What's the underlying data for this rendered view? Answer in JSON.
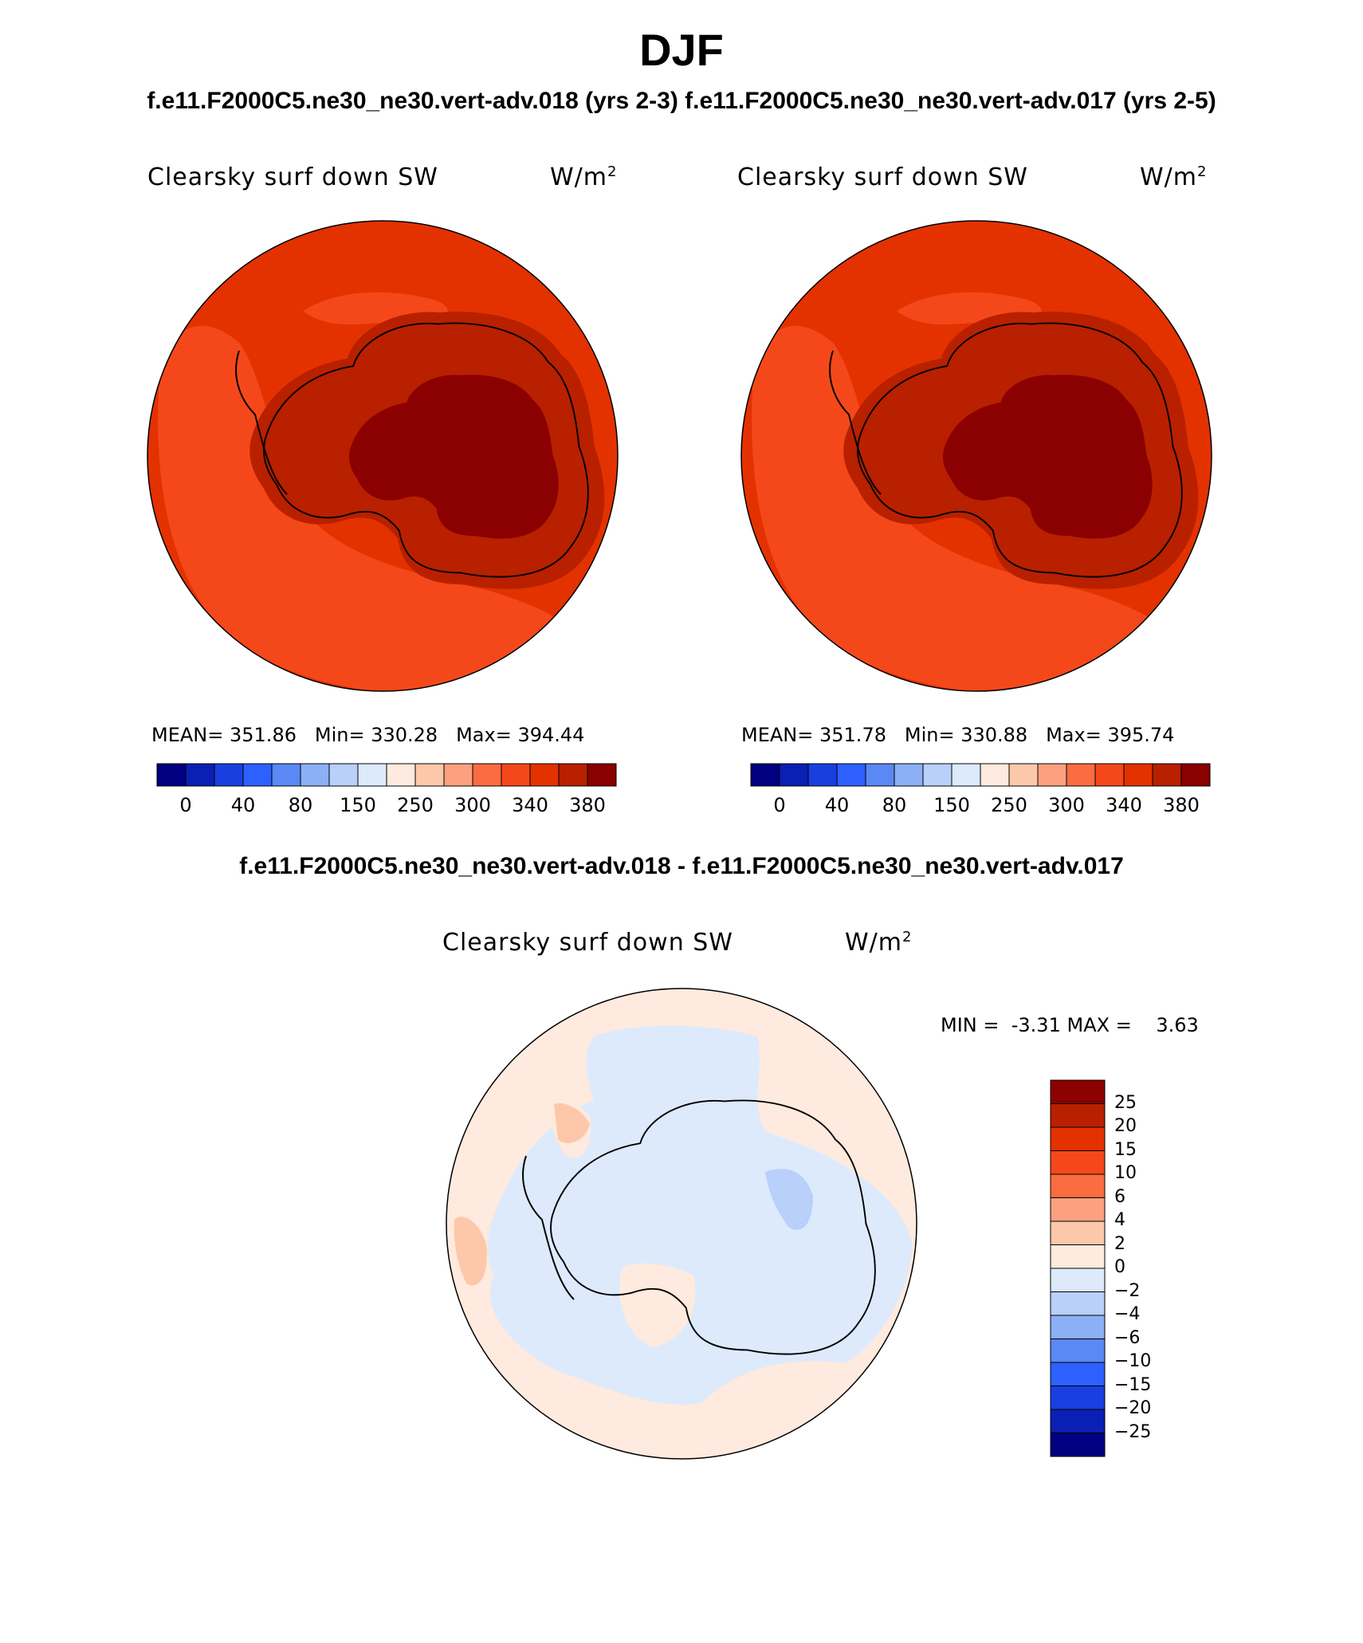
{
  "title": "DJF",
  "subtitle_top": "f.e11.F2000C5.ne30_ne30.vert-adv.018 (yrs 2-3) f.e11.F2000C5.ne30_ne30.vert-adv.017 (yrs 2-5)",
  "subtitle_diff": "f.e11.F2000C5.ne30_ne30.vert-adv.018 - f.e11.F2000C5.ne30_ne30.vert-adv.017",
  "panels": [
    {
      "variable": "Clearsky surf down SW",
      "units": "W/m",
      "units_sup": "2",
      "mean_label": "MEAN=",
      "mean": "351.86",
      "min_label": "Min=",
      "min": "330.28",
      "max_label": "Max=",
      "max": "394.44"
    },
    {
      "variable": "Clearsky surf down SW",
      "units": "W/m",
      "units_sup": "2",
      "mean_label": "MEAN=",
      "mean": "351.78",
      "min_label": "Min=",
      "min": "330.88",
      "max_label": "Max=",
      "max": "395.74"
    }
  ],
  "abs_colorbar": {
    "ticks": [
      "0",
      "40",
      "80",
      "150",
      "250",
      "300",
      "340",
      "380"
    ],
    "colors": [
      "#000080",
      "#0a1fb4",
      "#1a3fe0",
      "#2e60ff",
      "#5a88f5",
      "#8cb0f5",
      "#b8d0fa",
      "#ddeafc",
      "#feeade",
      "#fdc8aa",
      "#fca080",
      "#fb6c40",
      "#f5481a",
      "#e33200",
      "#b82000",
      "#8b0000"
    ]
  },
  "diff_panel": {
    "variable": "Clearsky surf down SW",
    "units": "W/m",
    "units_sup": "2",
    "min_label": "MIN =",
    "min": "-3.31",
    "max_label": "MAX =",
    "max": "3.63"
  },
  "diff_colorbar": {
    "ticks": [
      "25",
      "20",
      "15",
      "10",
      "6",
      "4",
      "2",
      "0",
      "−2",
      "−4",
      "−6",
      "−10",
      "−15",
      "−20",
      "−25"
    ],
    "colors": [
      "#8b0000",
      "#b82000",
      "#e33200",
      "#f5481a",
      "#fb6c40",
      "#fca080",
      "#fdc8aa",
      "#feeade",
      "#ddeafc",
      "#b8d0fa",
      "#8cb0f5",
      "#5a88f5",
      "#2e60ff",
      "#1a3fe0",
      "#0a1fb4",
      "#000080"
    ]
  }
}
